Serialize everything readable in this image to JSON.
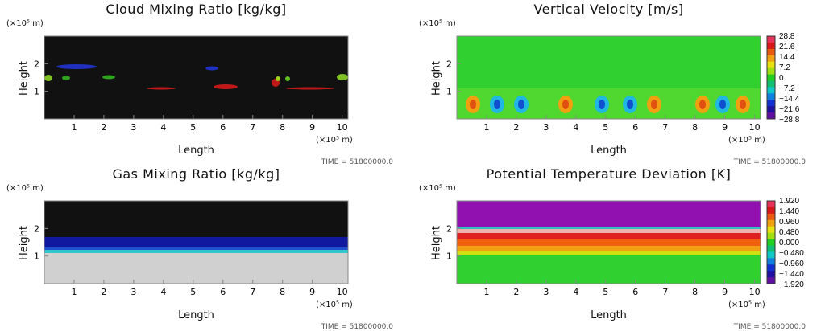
{
  "chart_data": [
    {
      "type": "heatmap",
      "title": "Cloud Mixing Ratio [kg/kg]",
      "xlabel": "Length",
      "ylabel": "Height",
      "x_unit": "(×10⁵ m)",
      "y_unit": "(×10⁵ m)",
      "xlim": [
        0,
        10.2
      ],
      "ylim": [
        0,
        3
      ],
      "xticks": [
        "1",
        "2",
        "3",
        "4",
        "5",
        "6",
        "7",
        "8",
        "9",
        "10"
      ],
      "yticks": [
        "1",
        "2"
      ],
      "time": "TIME = 51800000.0",
      "background": "#111111"
    },
    {
      "type": "heatmap",
      "title": "Vertical Velocity [m/s]",
      "xlabel": "Length",
      "ylabel": "Height",
      "x_unit": "(×10⁵ m)",
      "y_unit": "(×10⁵ m)",
      "xlim": [
        0,
        10.2
      ],
      "ylim": [
        0,
        3
      ],
      "xticks": [
        "1",
        "2",
        "3",
        "4",
        "5",
        "6",
        "7",
        "8",
        "9",
        "10"
      ],
      "yticks": [
        "1",
        "2"
      ],
      "time": "TIME = 51800000.0",
      "colorbar": [
        "28.8",
        "21.6",
        "14.4",
        "7.2",
        "0",
        "−7.2",
        "−14.4",
        "−21.6",
        "−28.8"
      ]
    },
    {
      "type": "heatmap",
      "title": "Gas Mixing Ratio [kg/kg]",
      "xlabel": "Length",
      "ylabel": "Height",
      "x_unit": "(×10⁵ m)",
      "y_unit": "(×10⁵ m)",
      "xlim": [
        0,
        10.2
      ],
      "ylim": [
        0,
        3
      ],
      "xticks": [
        "1",
        "2",
        "3",
        "4",
        "5",
        "6",
        "7",
        "8",
        "9",
        "10"
      ],
      "yticks": [
        "1",
        "2"
      ],
      "time": "TIME = 51800000.0"
    },
    {
      "type": "heatmap",
      "title": "Potential Temperature Deviation [K]",
      "xlabel": "Length",
      "ylabel": "Height",
      "x_unit": "(×10⁵ m)",
      "y_unit": "(×10⁵ m)",
      "xlim": [
        0,
        10.2
      ],
      "ylim": [
        0,
        3
      ],
      "xticks": [
        "1",
        "2",
        "3",
        "4",
        "5",
        "6",
        "7",
        "8",
        "9",
        "10"
      ],
      "yticks": [
        "1",
        "2"
      ],
      "time": "TIME = 51800000.0",
      "colorbar": [
        "1.920",
        "1.440",
        "0.960",
        "0.480",
        "0.000",
        "−0.480",
        "−0.960",
        "−1.440",
        "−1.920"
      ]
    }
  ]
}
